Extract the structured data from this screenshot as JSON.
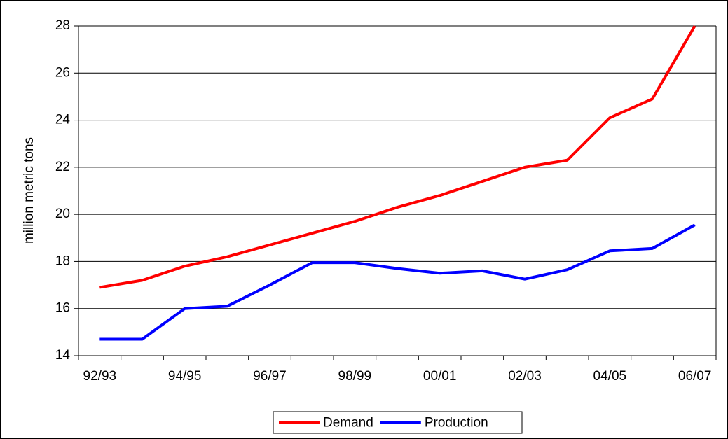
{
  "chart_data": {
    "type": "line",
    "y_label": "million metric tons",
    "categories": [
      "92/93",
      null,
      "94/95",
      null,
      "96/97",
      null,
      "98/99",
      null,
      "00/01",
      null,
      "02/03",
      null,
      "04/05",
      null,
      "06/07"
    ],
    "series": [
      {
        "name": "Demand",
        "color": "#ff0000",
        "values": [
          16.9,
          17.2,
          17.8,
          18.2,
          18.7,
          19.2,
          19.7,
          20.3,
          20.8,
          21.4,
          22.0,
          22.3,
          24.1,
          24.9,
          28.0
        ]
      },
      {
        "name": "Production",
        "color": "#0000ff",
        "values": [
          14.7,
          14.7,
          16.0,
          16.1,
          17.0,
          17.95,
          17.95,
          17.7,
          17.5,
          17.6,
          17.25,
          17.65,
          18.45,
          18.55,
          19.55
        ]
      }
    ],
    "ylim": [
      14,
      28
    ],
    "yticks": [
      14,
      16,
      18,
      20,
      22,
      24,
      26,
      28
    ],
    "grid": true,
    "legend": "bottom"
  }
}
